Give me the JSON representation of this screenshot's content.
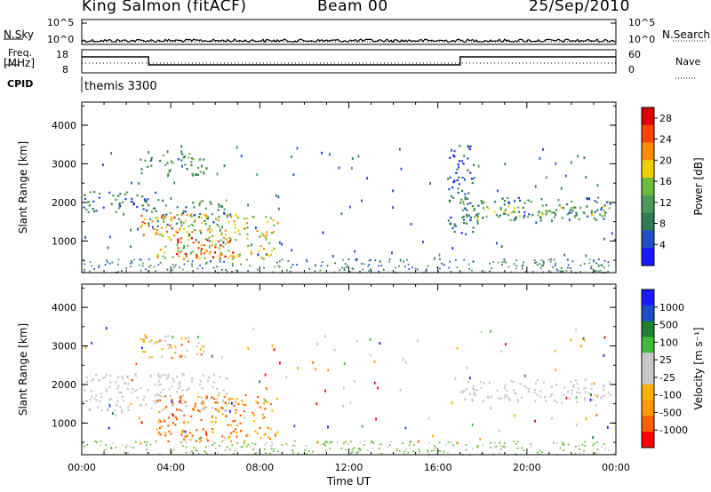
{
  "header": {
    "station": "King Salmon (fitACF)",
    "beam": "Beam 00",
    "date": "25/Sep/2010"
  },
  "strip_labels": {
    "nsky": "N.Sky",
    "nsearch": "N.Search",
    "freq_line1": "Freq.",
    "freq_line2": "[MHz]",
    "nave": "Nave",
    "cpid": "CPID",
    "cpid_value": "themis 3300",
    "nsky_ticks": [
      "10^5",
      "10^0"
    ],
    "nsearch_ticks": [
      "10^5",
      "10^0"
    ],
    "freq_ticks": [
      "18",
      "8"
    ],
    "nave_ticks": [
      "60",
      "0"
    ]
  },
  "colors": {
    "power_scale": [
      "#1a1aff",
      "#2050c8",
      "#2e7d55",
      "#4c9a5a",
      "#6cbb3c",
      "#f0d000",
      "#ff8c00",
      "#ff4500",
      "#e00000"
    ],
    "velocity_scale": [
      "#ff0000",
      "#ff6000",
      "#ff9900",
      "#ffb000",
      "#c8c8c8",
      "#c8c8c8",
      "#3cbb3c",
      "#208030",
      "#1a4fc8",
      "#1a1aff"
    ]
  },
  "chart_data": [
    {
      "type": "heatmap",
      "title": "",
      "xlabel": "",
      "ylabel": "Slant Range [km]",
      "xlim": [
        0,
        24
      ],
      "ylim": [
        180,
        4600
      ],
      "x_ticks": [
        "00:00",
        "04:00",
        "08:00",
        "12:00",
        "16:00",
        "20:00",
        "00:00"
      ],
      "y_ticks": [
        1000,
        2000,
        3000,
        4000
      ],
      "colorbar": {
        "label": "Power [dB]",
        "ticks": [
          "4",
          "8",
          "12",
          "16",
          "20",
          "24",
          "28"
        ],
        "range": [
          0,
          30
        ]
      },
      "regions": [
        {
          "t0": 0.0,
          "t1": 3.4,
          "r0": 1750,
          "r1": 2300,
          "value": 8
        },
        {
          "t0": 2.8,
          "t1": 6.5,
          "r0": 1400,
          "r1": 2100,
          "value": 10
        },
        {
          "t0": 2.6,
          "t1": 4.4,
          "r0": 1100,
          "r1": 1700,
          "value": 22
        },
        {
          "t0": 3.3,
          "t1": 8.8,
          "r0": 550,
          "r1": 1750,
          "value": 18
        },
        {
          "t0": 4.2,
          "t1": 6.8,
          "r0": 600,
          "r1": 1100,
          "value": 27
        },
        {
          "t0": 2.6,
          "t1": 5.6,
          "r0": 2700,
          "r1": 3300,
          "value": 11
        },
        {
          "t0": 17.0,
          "t1": 23.8,
          "r0": 1550,
          "r1": 2150,
          "value": 9
        },
        {
          "t0": 17.5,
          "t1": 23.8,
          "r0": 1620,
          "r1": 1950,
          "value": 14
        },
        {
          "t0": 16.4,
          "t1": 17.6,
          "r0": 1200,
          "r1": 3500,
          "value": 6
        }
      ]
    },
    {
      "type": "heatmap",
      "title": "",
      "xlabel": "Time UT",
      "ylabel": "Slant Range [km]",
      "xlim": [
        0,
        24
      ],
      "ylim": [
        180,
        4600
      ],
      "x_ticks": [
        "00:00",
        "04:00",
        "08:00",
        "12:00",
        "16:00",
        "20:00",
        "00:00"
      ],
      "y_ticks": [
        1000,
        2000,
        3000,
        4000
      ],
      "colorbar": {
        "label": "Velocity [m s⁻¹]",
        "ticks": [
          "1000",
          "500",
          "100",
          "25",
          "-25",
          "-100",
          "-500",
          "-1000"
        ]
      },
      "regions": [
        {
          "t0": 0.0,
          "t1": 6.5,
          "r0": 1300,
          "r1": 2300,
          "value": 0
        },
        {
          "t0": 3.3,
          "t1": 8.8,
          "r0": 550,
          "r1": 1750,
          "value": -120
        },
        {
          "t0": 17.0,
          "t1": 23.8,
          "r0": 1550,
          "r1": 2150,
          "value": 0
        },
        {
          "t0": 2.6,
          "t1": 5.6,
          "r0": 2700,
          "r1": 3300,
          "value": -60
        }
      ]
    }
  ]
}
